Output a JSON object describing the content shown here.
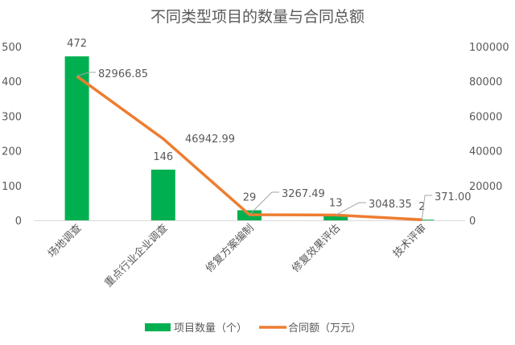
{
  "chart_data": {
    "type": "bar+line",
    "title": "不同类型项目的数量与合同总额",
    "categories": [
      "场地调查",
      "重点行业企业调查",
      "修复方案编制",
      "修复效果评估",
      "技术评审"
    ],
    "series": [
      {
        "name": "项目数量（个）",
        "type": "bar",
        "axis": "left",
        "color": "#00B050",
        "values": [
          472,
          146,
          29,
          13,
          2
        ],
        "labels": [
          "472",
          "146",
          "29",
          "13",
          "2"
        ]
      },
      {
        "name": "合同额（万元）",
        "type": "line",
        "axis": "right",
        "color": "#ED7D31",
        "values": [
          82966.85,
          46942.99,
          3267.49,
          3048.35,
          371.0
        ],
        "labels": [
          "82966.85",
          "46942.99",
          "3267.49",
          "3048.35",
          "371.00"
        ]
      }
    ],
    "y_left": {
      "range": [
        0,
        500
      ],
      "ticks": [
        "0",
        "100",
        "200",
        "300",
        "400",
        "500"
      ]
    },
    "y_right": {
      "range": [
        0,
        100000
      ],
      "ticks": [
        "0",
        "20000",
        "40000",
        "60000",
        "80000",
        "100000"
      ]
    },
    "grid": false,
    "legend": "bottom"
  }
}
